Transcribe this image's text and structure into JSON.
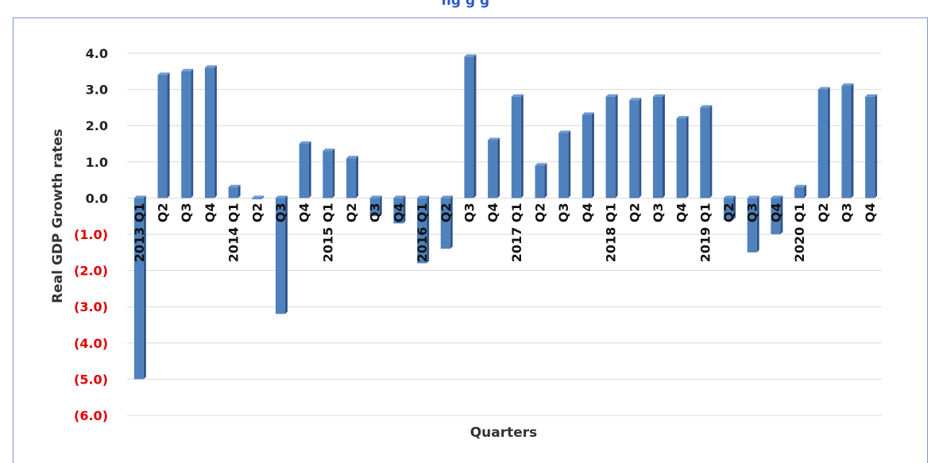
{
  "chart_data": {
    "type": "bar",
    "title": "ng    g                                    g",
    "xlabel": "Quarters",
    "ylabel": "Real GDP Growth rates",
    "ylim": [
      -6.0,
      4.0
    ],
    "yticks": [
      "4.0",
      "3.0",
      "2.0",
      "1.0",
      "0.0",
      "(1.0)",
      "(2.0)",
      "(3.0)",
      "(4.0)",
      "(5.0)",
      "(6.0)"
    ],
    "grid": true,
    "legend": "none",
    "colors": {
      "bar": "#4f81bd",
      "bar_side": "#2f5589",
      "bar_top": "#6e9ad2",
      "negative_tick": "#e00000",
      "positive_tick": "#222222",
      "grid": "#d9d9d9",
      "title": "#2a57c9"
    },
    "categories": [
      "2013 Q1",
      "Q2",
      "Q3",
      "Q4",
      "2014 Q1",
      "Q2",
      "Q3",
      "Q4",
      "2015 Q1",
      "Q2",
      "Q3",
      "Q4",
      "2016 Q1",
      "Q2",
      "Q3",
      "Q4",
      "2017 Q1",
      "Q2",
      "Q3",
      "Q4",
      "2018 Q1",
      "Q2",
      "Q3",
      "Q4",
      "2019 Q1",
      "Q2",
      "Q3",
      "Q4",
      "2020 Q1",
      "Q2",
      "Q3",
      "Q4"
    ],
    "values": [
      -5.0,
      3.4,
      3.5,
      3.6,
      0.3,
      0.0,
      -3.2,
      1.5,
      1.3,
      1.1,
      -0.5,
      -0.7,
      -1.8,
      -1.4,
      3.9,
      1.6,
      2.8,
      0.9,
      1.8,
      2.3,
      2.8,
      2.7,
      2.8,
      2.2,
      2.5,
      -0.6,
      -1.5,
      -1.0,
      0.3,
      3.0,
      3.1,
      2.8
    ]
  }
}
